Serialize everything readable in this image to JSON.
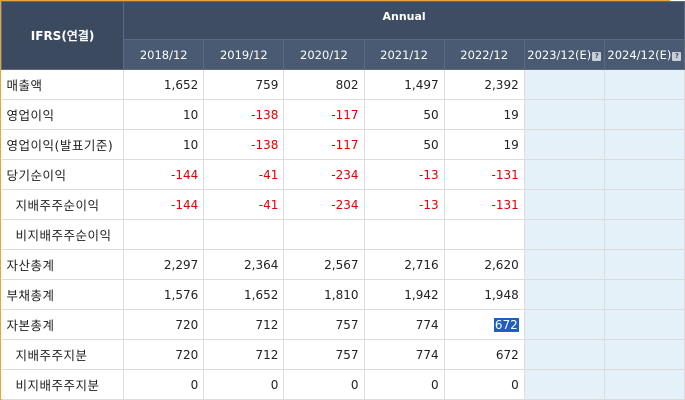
{
  "header": {
    "corner_label": "IFRS(연결)",
    "group_label": "Annual",
    "est_icon_glyph": "?",
    "years": [
      "2018/12",
      "2019/12",
      "2020/12",
      "2021/12",
      "2022/12",
      "2023/12(E)",
      "2024/12(E)"
    ]
  },
  "rows": [
    {
      "label": "매출액",
      "values": [
        "1,652",
        "759",
        "802",
        "1,497",
        "2,392"
      ]
    },
    {
      "label": "영업이익",
      "values": [
        "10",
        "-138",
        "-117",
        "50",
        "19"
      ]
    },
    {
      "label": "영업이익(발표기준)",
      "values": [
        "10",
        "-138",
        "-117",
        "50",
        "19"
      ]
    },
    {
      "label": "당기순이익",
      "values": [
        "-144",
        "-41",
        "-234",
        "-13",
        "-131"
      ]
    },
    {
      "label": "지배주주순이익",
      "values": [
        "-144",
        "-41",
        "-234",
        "-13",
        "-131"
      ]
    },
    {
      "label": "비지배주주순이익",
      "values": [
        "",
        "",
        "",
        "",
        ""
      ]
    },
    {
      "label": "자산총계",
      "values": [
        "2,297",
        "2,364",
        "2,567",
        "2,716",
        "2,620"
      ]
    },
    {
      "label": "부채총계",
      "values": [
        "1,576",
        "1,652",
        "1,810",
        "1,942",
        "1,948"
      ]
    },
    {
      "label": "자본총계",
      "values": [
        "720",
        "712",
        "757",
        "774",
        "672"
      ]
    },
    {
      "label": "지배주주지분",
      "values": [
        "720",
        "712",
        "757",
        "774",
        "672"
      ]
    },
    {
      "label": "비지배주주지분",
      "values": [
        "0",
        "0",
        "0",
        "0",
        "0"
      ]
    }
  ],
  "colors": {
    "header_bg": "#3e4d63",
    "negative": "#e00000",
    "estimate_bg": "#e4f1f8",
    "selection": "#1f5fbf",
    "frame": "#e8a33a"
  }
}
